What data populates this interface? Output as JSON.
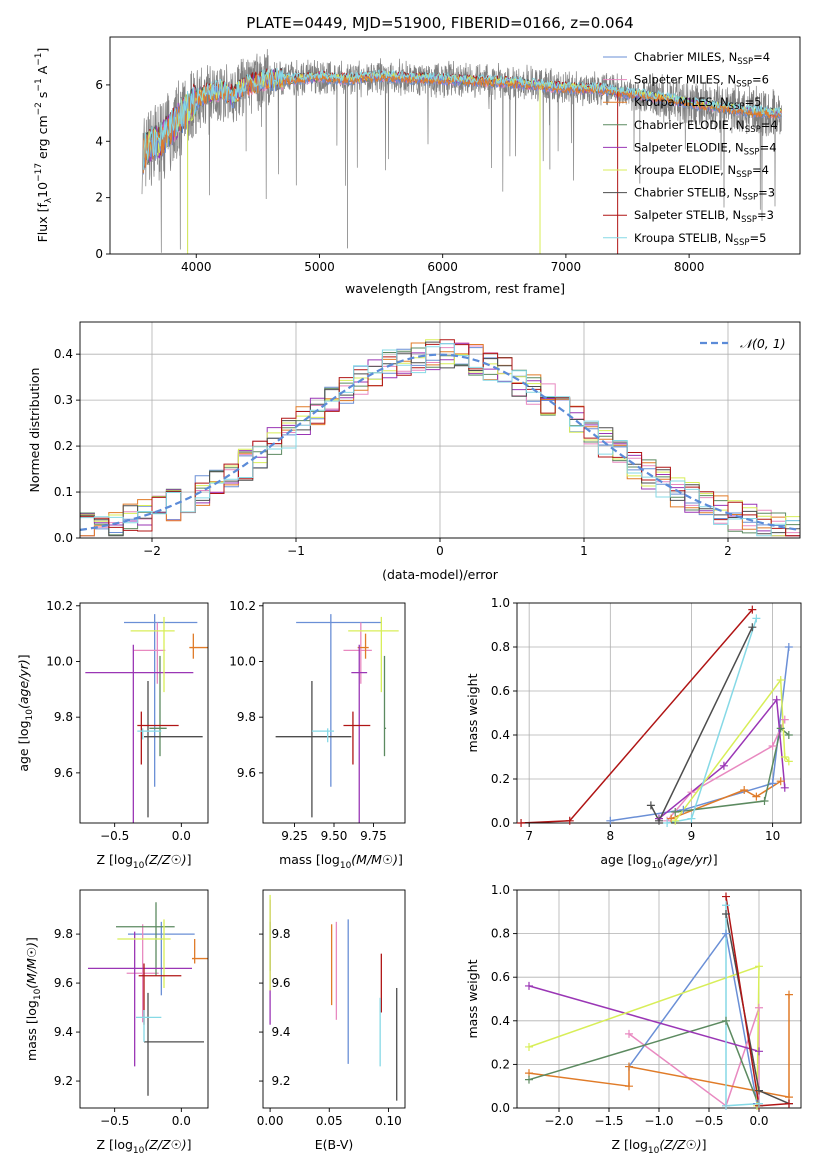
{
  "figure": {
    "title": "PLATE=0449, MJD=51900, FIBERID=0166, z=0.064"
  },
  "colors": {
    "Chabrier MILES": "#6a8fd6",
    "Salpeter MILES": "#e889c0",
    "Kroupa MILES": "#e07b28",
    "Chabrier ELODIE": "#5c8a60",
    "Salpeter ELODIE": "#9a36b5",
    "Kroupa ELODIE": "#d8ee58",
    "Chabrier STELIB": "#4d4d4d",
    "Salpeter STELIB": "#b01515",
    "Kroupa STELIB": "#86d9e6",
    "data": "#808080",
    "normal": "#5b8bd8",
    "grid": "#b0b0b0"
  },
  "chart_data": [
    {
      "id": "spectrum",
      "type": "line",
      "xlabel": "wavelength [Angstrom, rest frame]",
      "ylabel": "Flux [fλ10⁻¹⁷ erg cm⁻² s⁻¹ A⁻¹]",
      "xlim": [
        3300,
        8900
      ],
      "ylim": [
        0,
        7.7
      ],
      "xticks": [
        4000,
        5000,
        6000,
        7000,
        8000
      ],
      "yticks": [
        0,
        2,
        4,
        6
      ],
      "legend_position": "right",
      "legend": [
        {
          "label": "Chabrier MILES, N",
          "sub": "SSP",
          "suffix": "=4"
        },
        {
          "label": "Salpeter MILES, N",
          "sub": "SSP",
          "suffix": "=6"
        },
        {
          "label": "Kroupa MILES, N",
          "sub": "SSP",
          "suffix": "=5"
        },
        {
          "label": "Chabrier ELODIE, N",
          "sub": "SSP",
          "suffix": "=4"
        },
        {
          "label": "Salpeter ELODIE, N",
          "sub": "SSP",
          "suffix": "=4"
        },
        {
          "label": "Kroupa ELODIE, N",
          "sub": "SSP",
          "suffix": "=4"
        },
        {
          "label": "Chabrier STELIB, N",
          "sub": "SSP",
          "suffix": "=3"
        },
        {
          "label": "Salpeter STELIB, N",
          "sub": "SSP",
          "suffix": "=3"
        },
        {
          "label": "Kroupa STELIB, N",
          "sub": "SSP",
          "suffix": "=5"
        }
      ],
      "continuum": {
        "x": [
          3560,
          3600,
          3700,
          3800,
          3900,
          4000,
          4100,
          4200,
          4300,
          4400,
          4500,
          4600,
          4800,
          5000,
          5200,
          5500,
          6000,
          6500,
          7000,
          7300,
          7500,
          7700,
          7900,
          8100,
          8300,
          8500,
          8700
        ],
        "y": [
          3.4,
          3.8,
          4.0,
          4.5,
          5.0,
          5.5,
          5.7,
          5.8,
          5.6,
          6.0,
          6.1,
          6.2,
          6.2,
          6.3,
          6.2,
          6.3,
          6.2,
          6.1,
          5.9,
          5.85,
          5.7,
          5.6,
          5.45,
          5.3,
          5.2,
          5.05,
          5.0
        ]
      }
    },
    {
      "id": "residuals",
      "type": "histogram",
      "xlabel": "(data-model)/error",
      "ylabel": "Normed distribution",
      "xlim": [
        -2.5,
        2.5
      ],
      "ylim": [
        0,
        0.47
      ],
      "xticks": [
        -2,
        -1,
        0,
        1,
        2
      ],
      "yticks": [
        0.0,
        0.1,
        0.2,
        0.3,
        0.4
      ],
      "grid": true,
      "legend_position": "top-right",
      "legend": [
        {
          "label": "𝒩(0, 1)"
        }
      ],
      "bin_width": 0.1
    },
    {
      "id": "age-vs-Z",
      "type": "scatter",
      "xlabel": "Z [log10(Z/Z☉)]",
      "ylabel": "age  [log10(age/yr)]",
      "xlim": [
        -0.76,
        0.2
      ],
      "ylim": [
        9.42,
        10.21
      ],
      "xticks": [
        -0.5,
        0.0
      ],
      "yticks": [
        9.6,
        9.8,
        10.0,
        10.2
      ],
      "points": [
        {
          "m": "Chabrier MILES",
          "x": -0.2,
          "xerr": [
            0.23,
            0.32
          ],
          "y": 10.14,
          "yerr": [
            0.59,
            0.03
          ]
        },
        {
          "m": "Salpeter MILES",
          "x": -0.18,
          "xerr": [
            0.18,
            0.06
          ],
          "y": 10.04,
          "yerr": [
            0.12,
            0.1
          ]
        },
        {
          "m": "Kroupa MILES",
          "x": 0.09,
          "xerr": [
            0.03,
            0.12
          ],
          "y": 10.05,
          "yerr": [
            0.04,
            0.05
          ]
        },
        {
          "m": "Chabrier ELODIE",
          "x": -0.16,
          "xerr": [
            0.08,
            0.05
          ],
          "y": 9.76,
          "yerr": [
            0.1,
            0.26
          ]
        },
        {
          "m": "Salpeter ELODIE",
          "x": -0.36,
          "xerr": [
            0.36,
            0.45
          ],
          "y": 9.96,
          "yerr": [
            0.62,
            0.1
          ]
        },
        {
          "m": "Kroupa ELODIE",
          "x": -0.13,
          "xerr": [
            0.25,
            0.08
          ],
          "y": 10.11,
          "yerr": [
            0.22,
            0.05
          ]
        },
        {
          "m": "Chabrier STELIB",
          "x": -0.25,
          "xerr": [
            0.03,
            0.41
          ],
          "y": 9.73,
          "yerr": [
            0.29,
            0.2
          ]
        },
        {
          "m": "Salpeter STELIB",
          "x": -0.3,
          "xerr": [
            0.03,
            0.28
          ],
          "y": 9.77,
          "yerr": [
            0.14,
            0.05
          ]
        },
        {
          "m": "Kroupa STELIB",
          "x": -0.29,
          "xerr": [
            0.04,
            0.14
          ],
          "y": 9.75,
          "yerr": [
            0.03,
            0.01
          ]
        }
      ]
    },
    {
      "id": "age-vs-mass",
      "type": "scatter",
      "xlabel": "mass [log10(M/M☉)]",
      "ylabel": "",
      "xlim": [
        9.05,
        9.95
      ],
      "ylim": [
        9.42,
        10.21
      ],
      "xticks": [
        9.25,
        9.5,
        9.75
      ],
      "yticks": [
        9.6,
        9.8,
        10.0,
        10.2
      ],
      "points": [
        {
          "m": "Chabrier MILES",
          "x": 9.48,
          "xerr": [
            0.22,
            0.32
          ],
          "y": 10.14,
          "yerr": [
            0.59,
            0.03
          ]
        },
        {
          "m": "Salpeter MILES",
          "x": 9.67,
          "xerr": [
            0.11,
            0.07
          ],
          "y": 10.04,
          "yerr": [
            0.12,
            0.1
          ]
        },
        {
          "m": "Kroupa MILES",
          "x": 9.7,
          "xerr": [
            0.05,
            0.02
          ],
          "y": 10.05,
          "yerr": [
            0.04,
            0.05
          ]
        },
        {
          "m": "Chabrier ELODIE",
          "x": 9.82,
          "xerr": [
            0.0,
            0.01
          ],
          "y": 9.76,
          "yerr": [
            0.1,
            0.26
          ]
        },
        {
          "m": "Salpeter ELODIE",
          "x": 9.66,
          "xerr": [
            0.05,
            0.05
          ],
          "y": 9.96,
          "yerr": [
            0.62,
            0.1
          ]
        },
        {
          "m": "Kroupa ELODIE",
          "x": 9.8,
          "xerr": [
            0.21,
            0.11
          ],
          "y": 10.11,
          "yerr": [
            0.22,
            0.05
          ]
        },
        {
          "m": "Chabrier STELIB",
          "x": 9.36,
          "xerr": [
            0.23,
            0.25
          ],
          "y": 9.73,
          "yerr": [
            0.29,
            0.2
          ]
        },
        {
          "m": "Salpeter STELIB",
          "x": 9.62,
          "xerr": [
            0.06,
            0.11
          ],
          "y": 9.77,
          "yerr": [
            0.14,
            0.05
          ]
        },
        {
          "m": "Kroupa STELIB",
          "x": 9.46,
          "xerr": [
            0.1,
            0.04
          ],
          "y": 9.75,
          "yerr": [
            0.04,
            0.01
          ]
        }
      ]
    },
    {
      "id": "weight-vs-age",
      "type": "line",
      "xlabel": "age  [log10(age/yr)]",
      "ylabel": "mass weight",
      "xlim": [
        6.85,
        10.35
      ],
      "ylim": [
        0,
        1.0
      ],
      "xticks": [
        7,
        8,
        9,
        10
      ],
      "yticks": [
        0.0,
        0.2,
        0.4,
        0.6,
        0.8,
        1.0
      ],
      "grid": true,
      "series": [
        {
          "m": "Chabrier MILES",
          "x": [
            8.0,
            8.9,
            10.0,
            10.2
          ],
          "y": [
            0.01,
            0.06,
            0.18,
            0.8
          ]
        },
        {
          "m": "Salpeter MILES",
          "x": [
            8.7,
            9.0,
            10.0,
            10.15
          ],
          "y": [
            0.01,
            0.14,
            0.35,
            0.47
          ]
        },
        {
          "m": "Kroupa MILES",
          "x": [
            8.75,
            9.65,
            9.8,
            10.1
          ],
          "y": [
            0.02,
            0.15,
            0.12,
            0.19
          ]
        },
        {
          "m": "Chabrier ELODIE",
          "x": [
            8.8,
            9.9,
            10.1,
            10.2
          ],
          "y": [
            0.05,
            0.1,
            0.43,
            0.4
          ]
        },
        {
          "m": "Salpeter ELODIE",
          "x": [
            8.6,
            9.4,
            10.05,
            10.15
          ],
          "y": [
            0.02,
            0.26,
            0.56,
            0.16
          ]
        },
        {
          "m": "Kroupa ELODIE",
          "x": [
            8.8,
            10.1,
            10.15,
            10.2
          ],
          "y": [
            0.01,
            0.65,
            0.3,
            0.28
          ]
        },
        {
          "m": "Chabrier STELIB",
          "x": [
            8.5,
            8.6,
            9.75
          ],
          "y": [
            0.08,
            0.01,
            0.89
          ]
        },
        {
          "m": "Salpeter STELIB",
          "x": [
            6.9,
            7.5,
            9.75
          ],
          "y": [
            0.0,
            0.01,
            0.97
          ]
        },
        {
          "m": "Kroupa STELIB",
          "x": [
            8.7,
            9.0,
            9.8
          ],
          "y": [
            0.0,
            0.02,
            0.93
          ]
        }
      ]
    },
    {
      "id": "mass-vs-Z",
      "type": "scatter",
      "xlabel": "Z [log10(Z/Z☉)]",
      "ylabel": "mass [log10(M/M☉)]",
      "xlim": [
        -0.76,
        0.2
      ],
      "ylim": [
        9.09,
        9.98
      ],
      "xticks": [
        -0.5,
        0.0
      ],
      "yticks": [
        9.2,
        9.4,
        9.6,
        9.8
      ],
      "points": [
        {
          "m": "Chabrier MILES",
          "x": -0.15,
          "xerr": [
            0.25,
            0.25
          ],
          "y": 9.8,
          "yerr": [
            0.25,
            0.05
          ]
        },
        {
          "m": "Salpeter MILES",
          "x": -0.29,
          "xerr": [
            0.12,
            0.12
          ],
          "y": 9.64,
          "yerr": [
            0.2,
            0.2
          ]
        },
        {
          "m": "Kroupa MILES",
          "x": 0.1,
          "xerr": [
            0.02,
            0.12
          ],
          "y": 9.7,
          "yerr": [
            0.02,
            0.08
          ]
        },
        {
          "m": "Chabrier ELODIE",
          "x": -0.19,
          "xerr": [
            0.3,
            0.14
          ],
          "y": 9.83,
          "yerr": [
            0.2,
            0.1
          ]
        },
        {
          "m": "Salpeter ELODIE",
          "x": -0.35,
          "xerr": [
            0.35,
            0.43
          ],
          "y": 9.66,
          "yerr": [
            0.4,
            0.15
          ]
        },
        {
          "m": "Kroupa ELODIE",
          "x": -0.13,
          "xerr": [
            0.35,
            0.05
          ],
          "y": 9.78,
          "yerr": [
            0.2,
            0.08
          ]
        },
        {
          "m": "Chabrier STELIB",
          "x": -0.25,
          "xerr": [
            0.03,
            0.42
          ],
          "y": 9.36,
          "yerr": [
            0.22,
            0.2
          ]
        },
        {
          "m": "Salpeter STELIB",
          "x": -0.28,
          "xerr": [
            0.04,
            0.28
          ],
          "y": 9.63,
          "yerr": [
            0.2,
            0.05
          ]
        },
        {
          "m": "Kroupa STELIB",
          "x": -0.28,
          "xerr": [
            0.06,
            0.13
          ],
          "y": 9.46,
          "yerr": [
            0.1,
            0.03
          ]
        }
      ]
    },
    {
      "id": "mass-vs-EBV",
      "type": "scatter",
      "xlabel": "E(B-V)",
      "ylabel": "",
      "xlim": [
        -0.006,
        0.114
      ],
      "ylim": [
        9.09,
        9.98
      ],
      "xticks": [
        0.0,
        0.05,
        0.1
      ],
      "points": [
        {
          "m": "Chabrier MILES",
          "x": 0.066,
          "y": 9.58,
          "yerr": [
            0.31,
            0.28
          ]
        },
        {
          "m": "Salpeter MILES",
          "x": 0.056,
          "y": 9.65,
          "yerr": [
            0.2,
            0.2
          ]
        },
        {
          "m": "Kroupa MILES",
          "x": 0.052,
          "y": 9.66,
          "yerr": [
            0.15,
            0.18
          ]
        },
        {
          "m": "Chabrier ELODIE",
          "x": 0.0,
          "y": 9.75,
          "yerr": [
            0.1,
            0.1
          ]
        },
        {
          "m": "Salpeter ELODIE",
          "x": 0.0,
          "y": 9.56,
          "yerr": [
            0.13,
            0.38
          ]
        },
        {
          "m": "Kroupa ELODIE",
          "x": 0.0,
          "y": 9.76,
          "yerr": [
            0.19,
            0.2
          ]
        },
        {
          "m": "Chabrier STELIB",
          "x": 0.107,
          "y": 9.35,
          "yerr": [
            0.23,
            0.23
          ]
        },
        {
          "m": "Salpeter STELIB",
          "x": 0.094,
          "y": 9.63,
          "yerr": [
            0.15,
            0.09
          ]
        },
        {
          "m": "Kroupa STELIB",
          "x": 0.093,
          "y": 9.4,
          "yerr": [
            0.14,
            0.14
          ]
        }
      ]
    },
    {
      "id": "weight-vs-Z",
      "type": "line",
      "xlabel": "Z [log10(Z/Z☉)]",
      "ylabel": "mass weight",
      "xlim": [
        -2.42,
        0.42
      ],
      "ylim": [
        0,
        1.0
      ],
      "xticks": [
        -2.0,
        -1.5,
        -1.0,
        -0.5,
        0.0
      ],
      "yticks": [
        0.0,
        0.2,
        0.4,
        0.6,
        0.8,
        1.0
      ],
      "grid": true,
      "series": [
        {
          "m": "Chabrier MILES",
          "x": [
            -1.3,
            -0.33,
            -0.02,
            0.0
          ],
          "y": [
            0.19,
            0.8,
            0.02,
            0.01
          ]
        },
        {
          "m": "Salpeter MILES",
          "x": [
            -1.3,
            -0.33,
            0.0,
            0.0
          ],
          "y": [
            0.34,
            0.01,
            0.46,
            0.02
          ]
        },
        {
          "m": "Kroupa MILES",
          "x": [
            -2.3,
            -1.3,
            -1.3,
            0.3,
            0.3
          ],
          "y": [
            0.16,
            0.1,
            0.19,
            0.05,
            0.52
          ]
        },
        {
          "m": "Chabrier ELODIE",
          "x": [
            -2.3,
            -0.33,
            0.0
          ],
          "y": [
            0.13,
            0.4,
            0.01
          ]
        },
        {
          "m": "Salpeter ELODIE",
          "x": [
            -2.3,
            0.0
          ],
          "y": [
            0.56,
            0.26
          ]
        },
        {
          "m": "Kroupa ELODIE",
          "x": [
            -2.3,
            0.0,
            -0.02
          ],
          "y": [
            0.28,
            0.65,
            0.01
          ]
        },
        {
          "m": "Chabrier STELIB",
          "x": [
            -0.33,
            0.0,
            0.3
          ],
          "y": [
            0.89,
            0.08,
            0.02
          ]
        },
        {
          "m": "Salpeter STELIB",
          "x": [
            -0.33,
            0.0,
            0.3
          ],
          "y": [
            0.97,
            0.01,
            0.02
          ]
        },
        {
          "m": "Kroupa STELIB",
          "x": [
            -0.33,
            -0.33,
            0.0
          ],
          "y": [
            0.93,
            0.01,
            0.02
          ]
        }
      ]
    }
  ]
}
